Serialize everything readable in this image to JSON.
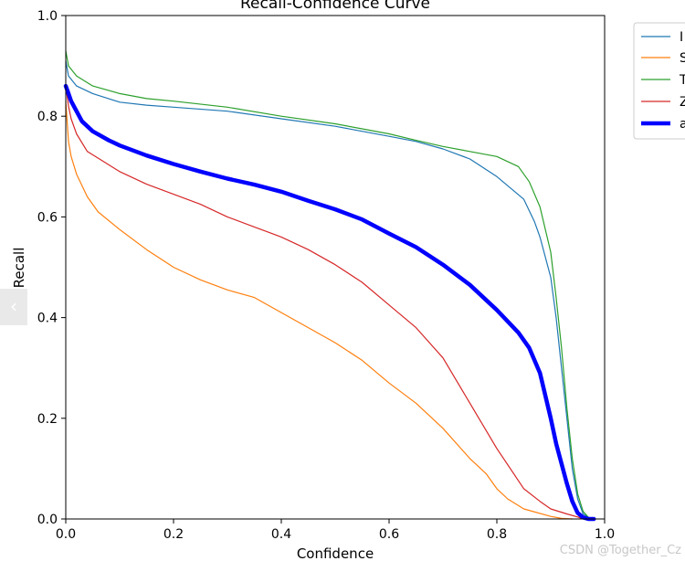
{
  "chart_data": {
    "type": "line",
    "title": "Recall-Confidence Curve",
    "xlabel": "Confidence",
    "ylabel": "Recall",
    "xlim": [
      0,
      1
    ],
    "ylim": [
      0,
      1
    ],
    "x_ticks": [
      "0.0",
      "0.2",
      "0.4",
      "0.6",
      "0.8",
      "1.0"
    ],
    "y_ticks": [
      "0.0",
      "0.2",
      "0.4",
      "0.6",
      "0.8",
      "1.0"
    ],
    "grid": false,
    "legend": "outside-top-right, cropped",
    "legend_labels": [
      "I",
      "S",
      "T",
      "Z",
      "a"
    ],
    "series": [
      {
        "color": "#1f77b4",
        "width": 1.2,
        "x": [
          0,
          0.005,
          0.02,
          0.05,
          0.1,
          0.15,
          0.2,
          0.3,
          0.4,
          0.5,
          0.55,
          0.6,
          0.65,
          0.7,
          0.75,
          0.8,
          0.85,
          0.87,
          0.88,
          0.9,
          0.91,
          0.92,
          0.93,
          0.94,
          0.95,
          0.96,
          0.97,
          0.98
        ],
        "y": [
          0.91,
          0.88,
          0.86,
          0.845,
          0.828,
          0.822,
          0.818,
          0.81,
          0.795,
          0.78,
          0.77,
          0.76,
          0.75,
          0.735,
          0.715,
          0.68,
          0.635,
          0.59,
          0.56,
          0.48,
          0.4,
          0.3,
          0.2,
          0.1,
          0.04,
          0.01,
          0.003,
          0.0
        ]
      },
      {
        "color": "#ff7f0e",
        "width": 1.2,
        "x": [
          0,
          0.005,
          0.01,
          0.02,
          0.04,
          0.06,
          0.1,
          0.15,
          0.2,
          0.25,
          0.3,
          0.35,
          0.4,
          0.45,
          0.5,
          0.55,
          0.6,
          0.65,
          0.7,
          0.75,
          0.78,
          0.8,
          0.82,
          0.85,
          0.9,
          0.92,
          0.94
        ],
        "y": [
          0.83,
          0.75,
          0.72,
          0.685,
          0.64,
          0.61,
          0.575,
          0.535,
          0.5,
          0.475,
          0.455,
          0.44,
          0.41,
          0.38,
          0.35,
          0.315,
          0.27,
          0.23,
          0.18,
          0.12,
          0.09,
          0.06,
          0.04,
          0.02,
          0.005,
          0.001,
          0.0
        ]
      },
      {
        "color": "#2ca02c",
        "width": 1.2,
        "x": [
          0,
          0.005,
          0.02,
          0.05,
          0.1,
          0.15,
          0.2,
          0.3,
          0.4,
          0.5,
          0.55,
          0.6,
          0.65,
          0.7,
          0.75,
          0.8,
          0.84,
          0.86,
          0.88,
          0.9,
          0.91,
          0.92,
          0.93,
          0.94,
          0.95,
          0.96,
          0.97,
          0.98
        ],
        "y": [
          0.93,
          0.9,
          0.88,
          0.86,
          0.845,
          0.835,
          0.83,
          0.818,
          0.8,
          0.785,
          0.775,
          0.765,
          0.752,
          0.74,
          0.73,
          0.72,
          0.7,
          0.67,
          0.62,
          0.53,
          0.44,
          0.34,
          0.22,
          0.12,
          0.05,
          0.015,
          0.003,
          0.0
        ]
      },
      {
        "color": "#d62728",
        "width": 1.2,
        "x": [
          0,
          0.005,
          0.01,
          0.02,
          0.04,
          0.07,
          0.1,
          0.15,
          0.2,
          0.25,
          0.3,
          0.35,
          0.4,
          0.45,
          0.5,
          0.55,
          0.6,
          0.65,
          0.7,
          0.75,
          0.8,
          0.85,
          0.88,
          0.9,
          0.93,
          0.95,
          0.96
        ],
        "y": [
          0.86,
          0.82,
          0.795,
          0.765,
          0.73,
          0.71,
          0.69,
          0.665,
          0.645,
          0.625,
          0.6,
          0.58,
          0.56,
          0.535,
          0.505,
          0.47,
          0.425,
          0.38,
          0.32,
          0.23,
          0.14,
          0.06,
          0.035,
          0.02,
          0.01,
          0.004,
          0.0
        ]
      },
      {
        "color": "#0000ff",
        "width": 4.5,
        "x": [
          0,
          0.005,
          0.01,
          0.02,
          0.03,
          0.05,
          0.08,
          0.1,
          0.15,
          0.2,
          0.25,
          0.3,
          0.35,
          0.4,
          0.45,
          0.5,
          0.55,
          0.6,
          0.65,
          0.7,
          0.75,
          0.8,
          0.84,
          0.86,
          0.88,
          0.9,
          0.91,
          0.92,
          0.93,
          0.94,
          0.95,
          0.96,
          0.97,
          0.98
        ],
        "y": [
          0.86,
          0.845,
          0.83,
          0.81,
          0.79,
          0.77,
          0.752,
          0.742,
          0.722,
          0.705,
          0.69,
          0.676,
          0.664,
          0.65,
          0.632,
          0.615,
          0.595,
          0.567,
          0.54,
          0.505,
          0.465,
          0.415,
          0.37,
          0.34,
          0.29,
          0.2,
          0.15,
          0.11,
          0.07,
          0.035,
          0.012,
          0.003,
          0.0,
          0.0
        ]
      }
    ]
  },
  "ui": {
    "prev_icon": "chevron-left-icon",
    "prev_glyph": "‹",
    "watermark": "CSDN @Together_Cz"
  }
}
